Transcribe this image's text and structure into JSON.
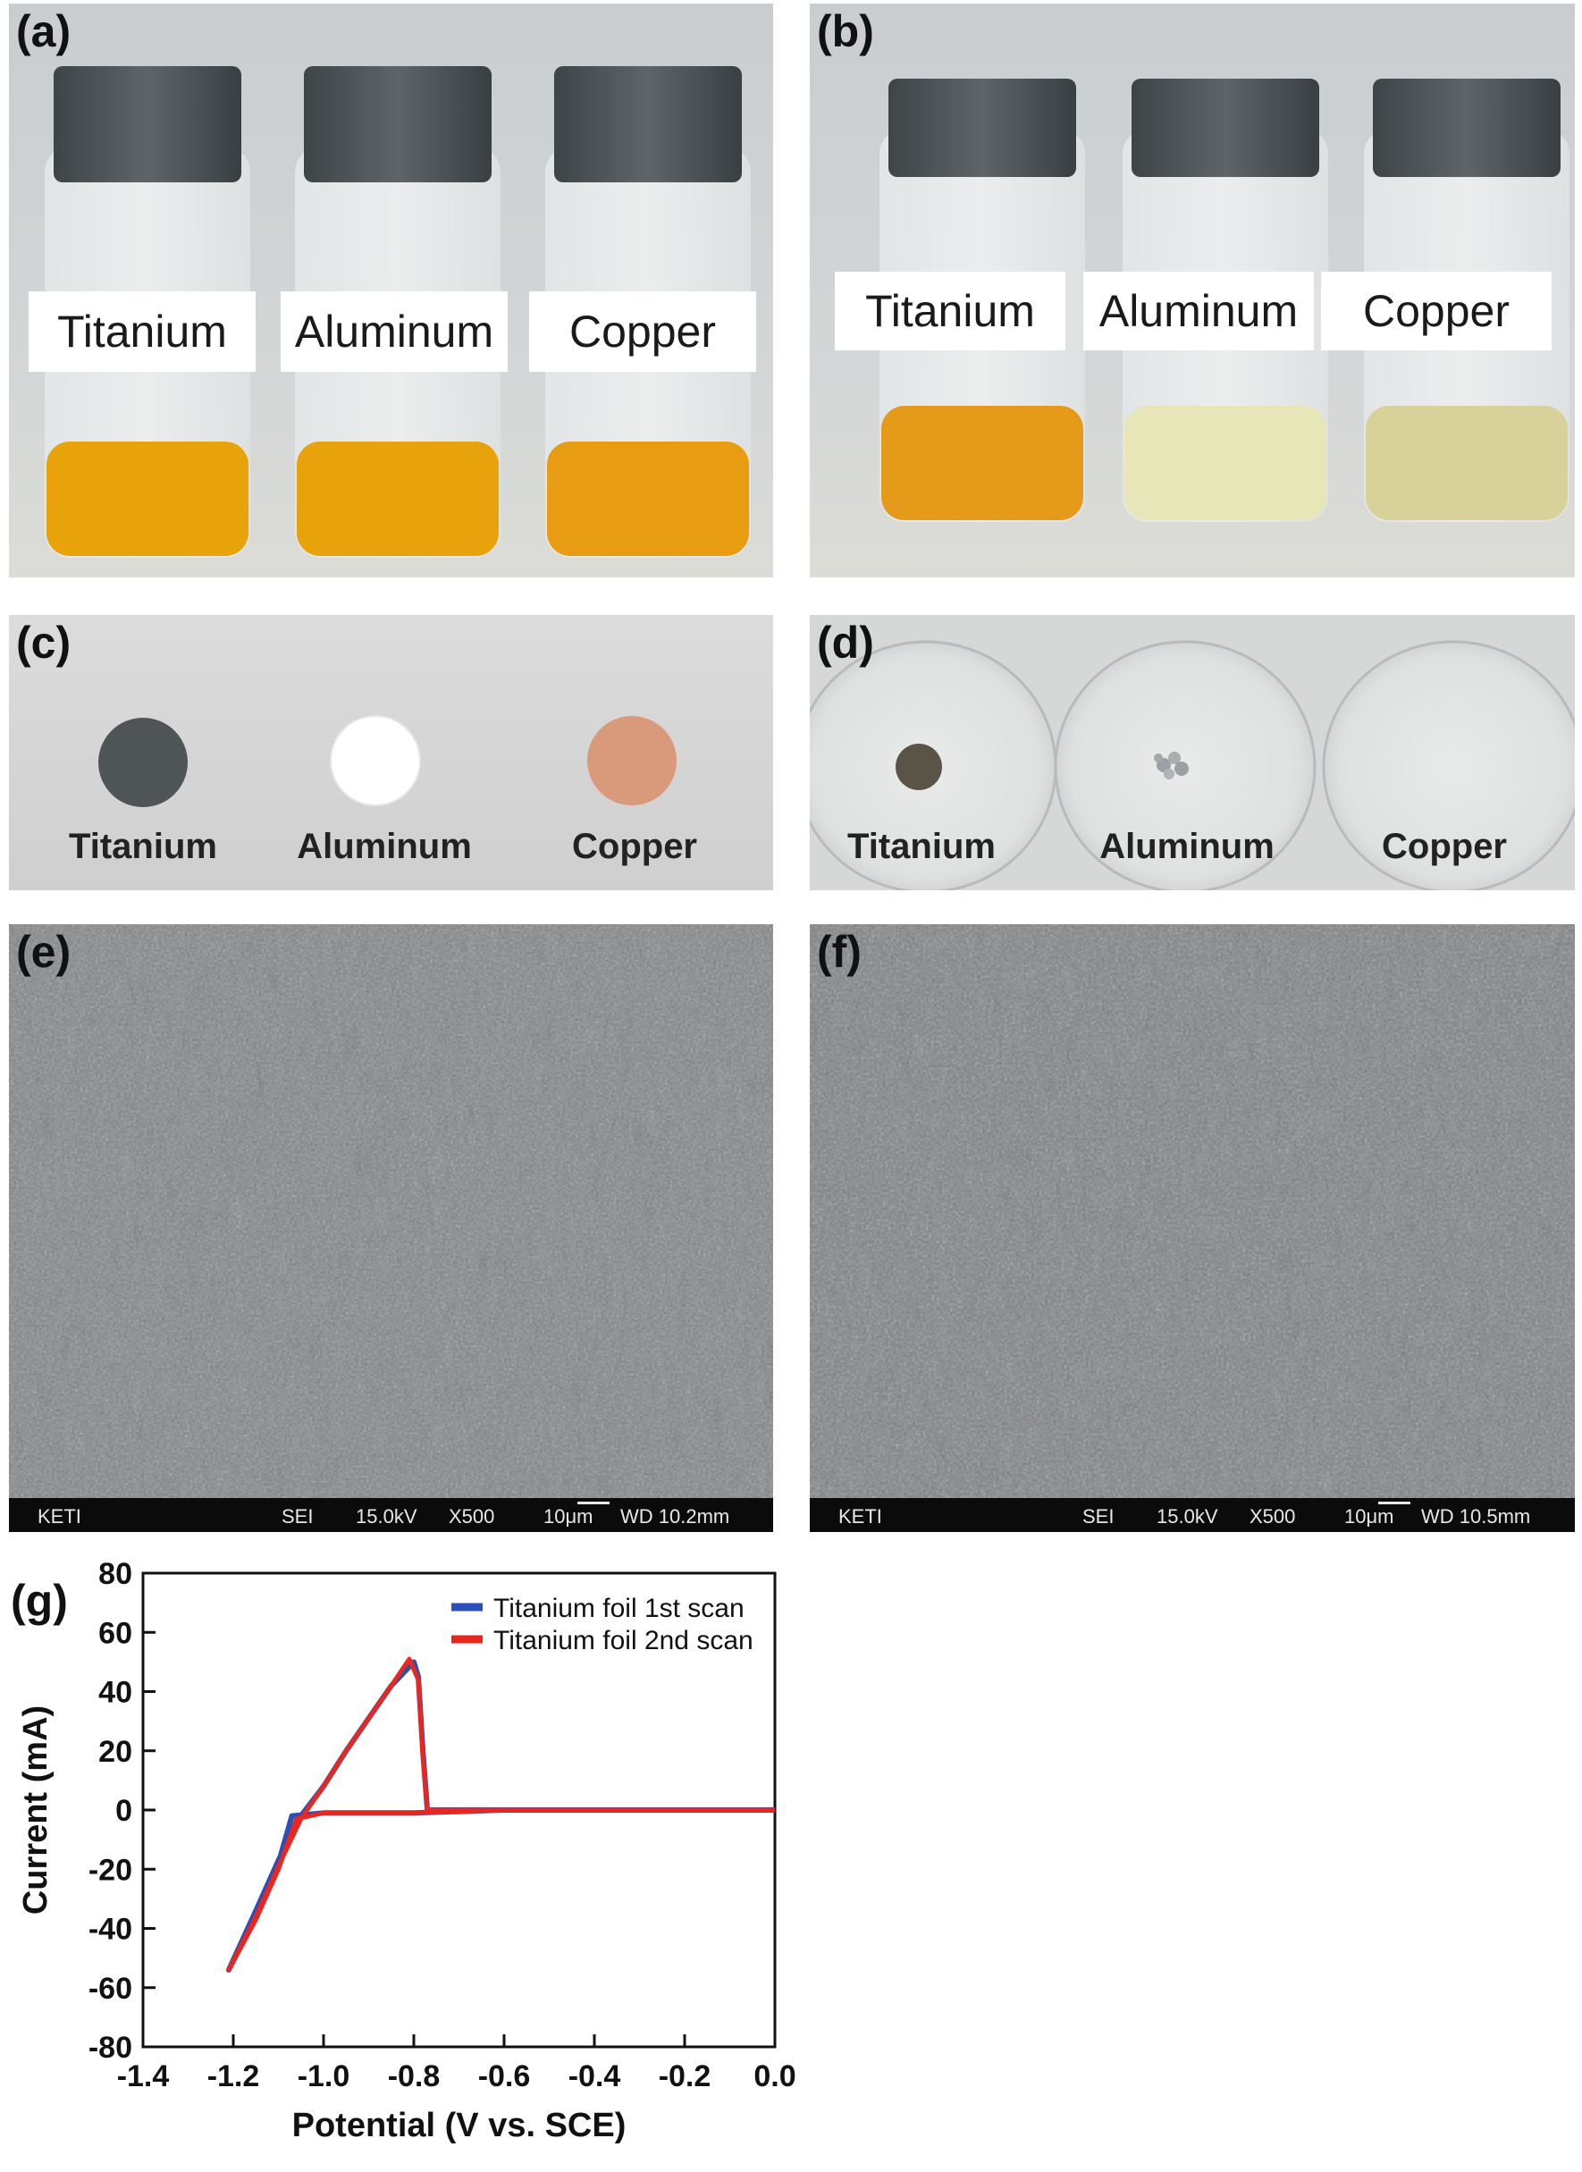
{
  "figure": {
    "panels": {
      "a": {
        "letter": "(a)",
        "labels": [
          "Titanium",
          "Aluminum",
          "Copper"
        ],
        "liquid_colors": [
          "#e9a30a",
          "#e8a20c",
          "#e79c12"
        ]
      },
      "b": {
        "letter": "(b)",
        "labels": [
          "Titanium",
          "Aluminum",
          "Copper"
        ],
        "liquid_colors": [
          "#e69a1a",
          "#e7e6b8",
          "#d8d29a"
        ]
      },
      "c": {
        "letter": "(c)",
        "labels": [
          "Titanium",
          "Aluminum",
          "Copper"
        ],
        "disc_colors": [
          "#4f5456",
          "#ffffff",
          "#d99a7c"
        ]
      },
      "d": {
        "letter": "(d)",
        "labels": [
          "Titanium",
          "Aluminum",
          "Copper"
        ]
      },
      "e": {
        "letter": "(e)",
        "sem_bar": {
          "org": "KETI",
          "mode": "SEI",
          "voltage": "15.0kV",
          "magnification": "X500",
          "scale": "10μm",
          "wd": "WD 10.2mm"
        }
      },
      "f": {
        "letter": "(f)",
        "sem_bar": {
          "org": "KETI",
          "mode": "SEI",
          "voltage": "15.0kV",
          "magnification": "X500",
          "scale": "10μm",
          "wd": "WD 10.5mm"
        }
      },
      "g": {
        "letter": "(g)"
      }
    }
  },
  "chart_data": {
    "type": "line",
    "xlabel": "Potential (V vs. SCE)",
    "ylabel": "Current (mA)",
    "xlim": [
      -1.4,
      0.0
    ],
    "ylim": [
      -80,
      80
    ],
    "xticks": [
      "-1.4",
      "-1.2",
      "-1.0",
      "-0.8",
      "-0.6",
      "-0.4",
      "-0.2",
      "0.0"
    ],
    "yticks": [
      "80",
      "60",
      "40",
      "20",
      "0",
      "-20",
      "-40",
      "-60",
      "-80"
    ],
    "legend_position": "top-right",
    "series": [
      {
        "name": "Titanium foil 1st scan",
        "color": "#2b4fb8",
        "x": [
          0.0,
          -0.3,
          -0.6,
          -0.77,
          -0.78,
          -0.79,
          -0.8,
          -0.85,
          -0.9,
          -0.95,
          -1.0,
          -1.05,
          -1.1,
          -1.15,
          -1.21,
          -1.15,
          -1.1,
          -1.07,
          -1.0,
          -0.8,
          -0.6,
          -0.3,
          0.0
        ],
        "y": [
          0,
          0,
          0,
          0,
          20,
          45,
          50,
          42,
          31,
          20,
          8,
          -2,
          -17,
          -34,
          -54,
          -36,
          -18,
          -2,
          -1,
          -1,
          0,
          0,
          0
        ]
      },
      {
        "name": "Titanium foil 2nd scan",
        "color": "#e8271f",
        "x": [
          0.0,
          -0.3,
          -0.6,
          -0.77,
          -0.78,
          -0.79,
          -0.81,
          -0.85,
          -0.9,
          -0.95,
          -1.0,
          -1.05,
          -1.1,
          -1.15,
          -1.21,
          -1.15,
          -1.1,
          -1.06,
          -1.0,
          -0.8,
          -0.6,
          -0.3,
          0.0
        ],
        "y": [
          0,
          0,
          0,
          0,
          18,
          44,
          51,
          42,
          31,
          20,
          8,
          -3,
          -19,
          -36,
          -54,
          -37,
          -20,
          -3,
          -1,
          -1,
          0,
          0,
          0
        ]
      }
    ]
  }
}
